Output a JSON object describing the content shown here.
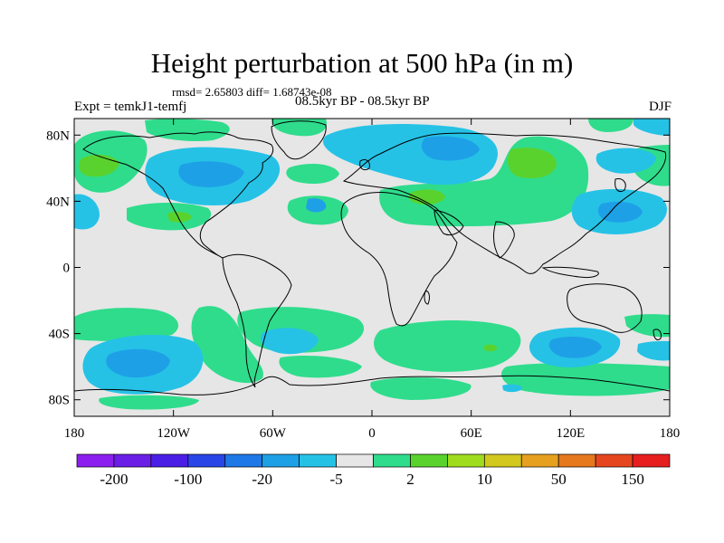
{
  "title": "Height perturbation at 500 hPa (in m)",
  "stats_text": "rmsd= 2.65803 diff= 1.68743e-08",
  "experiment": "Expt = temkJ1-temfj",
  "period": "08.5kyr BP - 08.5kyr BP",
  "season": "DJF",
  "map": {
    "variable": "500 hPa height perturbation",
    "units": "m",
    "lon_range": [
      -180,
      180
    ],
    "lat_range": [
      -90,
      90
    ],
    "y_ticks": [
      {
        "lat": 80,
        "label": "80N"
      },
      {
        "lat": 40,
        "label": "40N"
      },
      {
        "lat": 0,
        "label": "0"
      },
      {
        "lat": -40,
        "label": "40S"
      },
      {
        "lat": -80,
        "label": "80S"
      }
    ],
    "x_ticks": [
      {
        "lon": -180,
        "label": "180"
      },
      {
        "lon": -120,
        "label": "120W"
      },
      {
        "lon": -60,
        "label": "60W"
      },
      {
        "lon": 0,
        "label": "0"
      },
      {
        "lon": 60,
        "label": "60E"
      },
      {
        "lon": 120,
        "label": "120E"
      },
      {
        "lon": 180,
        "label": "180"
      }
    ],
    "neutral_color": "#e6e6e6",
    "positive_light": "#2fdc8c",
    "positive_strong": "#5ad22e",
    "negative_light": "#25c2e6",
    "negative_strong": "#1ea0e6"
  },
  "colorbar": {
    "colors": [
      "#8c1ef0",
      "#6a1ee6",
      "#4b1ee6",
      "#2846e6",
      "#1e78e6",
      "#1ea0e6",
      "#25c2e6",
      "#e6e6e6",
      "#2fdc8c",
      "#5ad22e",
      "#a0dc1e",
      "#d2c81e",
      "#e6a01e",
      "#e6781e",
      "#e6461e",
      "#e61e1e"
    ],
    "labels": [
      "-200",
      "-100",
      "-20",
      "-5",
      "2",
      "10",
      "50",
      "150"
    ]
  }
}
